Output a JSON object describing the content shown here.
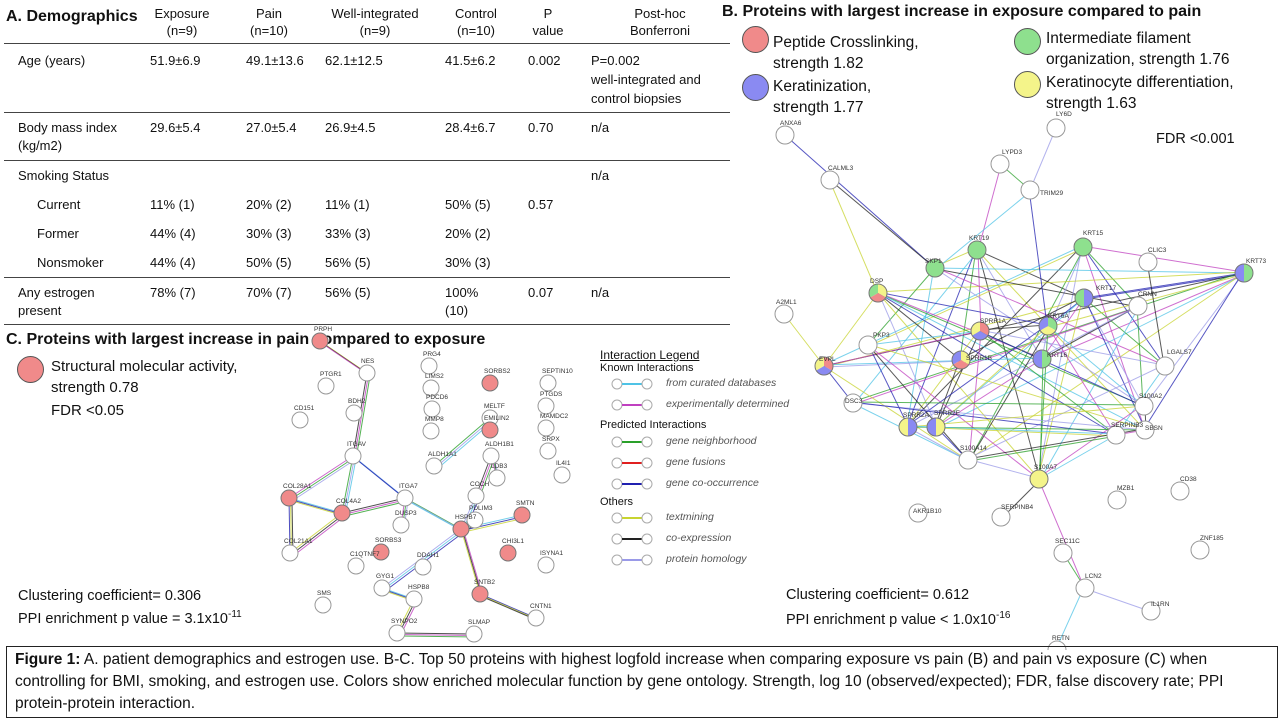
{
  "panel_a": {
    "title": "A. Demographics",
    "columns": [
      {
        "line1": "Exposure",
        "line2": "(n=9)"
      },
      {
        "line1": "Pain",
        "line2": "(n=10)"
      },
      {
        "line1": "Well-integrated",
        "line2": "(n=9)"
      },
      {
        "line1": "Control",
        "line2": "(n=10)"
      },
      {
        "line1": "P",
        "line2": "value"
      },
      {
        "line1": "Post-hoc",
        "line2": "Bonferroni"
      }
    ],
    "rows": {
      "age": {
        "label": "Age (years)",
        "exposure": "51.9±6.9",
        "pain": "49.1±13.6",
        "well": "62.1±12.5",
        "control": "41.5±6.2",
        "p": "0.002",
        "posthoc1": "P=0.002",
        "posthoc2": "well-integrated and",
        "posthoc3": "control biopsies"
      },
      "bmi": {
        "label1": "Body mass index",
        "label2": "(kg/m2)",
        "exposure": "29.6±5.4",
        "pain": "27.0±5.4",
        "well": "26.9±4.5",
        "control": "28.4±6.7",
        "p": "0.70",
        "posthoc": "n/a"
      },
      "smoking": {
        "label": "Smoking Status",
        "posthoc": "n/a"
      },
      "current": {
        "label": "Current",
        "exposure": "11% (1)",
        "pain": "20% (2)",
        "well": "11% (1)",
        "control": "50% (5)",
        "p": "0.57"
      },
      "former": {
        "label": "Former",
        "exposure": "44% (4)",
        "pain": "30% (3)",
        "well": "33% (3)",
        "control": "20% (2)"
      },
      "nonsmoker": {
        "label": "Nonsmoker",
        "exposure": "44% (4)",
        "pain": "50% (5)",
        "well": "56% (5)",
        "control": "30% (3)"
      },
      "estrogen": {
        "label1": "Any estrogen",
        "label2": "present",
        "exposure": "78% (7)",
        "pain": "70% (7)",
        "well": "56% (5)",
        "control1": "100%",
        "control2": "(10)",
        "p": "0.07",
        "posthoc": "n/a"
      }
    }
  },
  "panel_b": {
    "title": "B. Proteins with largest increase in exposure compared to pain",
    "legend": [
      {
        "line1": "Peptide Crosslinking,",
        "line2": "strength 1.82",
        "color": "#f08a8a"
      },
      {
        "line1": "Keratinization,",
        "line2": "strength 1.77",
        "color": "#8a8af2"
      },
      {
        "line1": "Intermediate filament",
        "line2": "organization, strength 1.76",
        "color": "#8ee08e"
      },
      {
        "line1": "Keratinocyte differentiation,",
        "line2": "strength 1.63",
        "color": "#f4f48a"
      }
    ],
    "fdr": "FDR <0.001",
    "clustering": "Clustering coefficient= 0.612",
    "ppi_prefix": "PPI enrichment p value < 1.0x10",
    "ppi_exp": "-16",
    "nodes": [
      "ANXA6",
      "LY6D",
      "CALML3",
      "LYPD3",
      "TRIM29",
      "KRT19",
      "KRT15",
      "CLIC3",
      "KRT73",
      "SKP1",
      "KRT17",
      "CRNN",
      "DSP",
      "A2ML1",
      "SPRR1A",
      "KRT6A",
      "EVPL",
      "SPRR1B",
      "KRT16",
      "LGALS7",
      "PKP3",
      "DSC3",
      "S100A2",
      "SPRR2A",
      "SPRR2E",
      "SBSN",
      "S100A14",
      "SERPINB3",
      "S100A7",
      "AKR1B10",
      "SERPINB4",
      "MZB1",
      "CD38",
      "SEC11C",
      "ZNF185",
      "LCN2",
      "IL1RN",
      "RETN"
    ]
  },
  "panel_c": {
    "title": "C. Proteins with largest increase in pain compared to exposure",
    "legend": {
      "line1": "Structural molecular activity,",
      "line2": "strength 0.78",
      "color": "#f08a8a"
    },
    "fdr": "FDR <0.05",
    "clustering": "Clustering coefficient= 0.306",
    "ppi_prefix": "PPI enrichment p value = 3.1x10",
    "ppi_exp": "-11",
    "nodes": [
      "PRPH",
      "NES",
      "PTGR1",
      "BDH2",
      "CD151",
      "ITGAV",
      "PRG4",
      "LIMS2",
      "PDCD6",
      "MMP8",
      "ALDH1A1",
      "SORBS2",
      "MELTF",
      "EMILIN2",
      "ALDH1B1",
      "SEPTIN10",
      "PTGDS",
      "MAMDC2",
      "SRPX",
      "IL4I1",
      "LDB3",
      "COL28A1",
      "COL4A2",
      "ITGA7",
      "COL21A1",
      "DUSP3",
      "COCH",
      "SMTN",
      "PDLIM3",
      "HSPB7",
      "SORBS3",
      "C1QTNF7",
      "DDAH1",
      "GYG1",
      "HSPB8",
      "CHI3L1",
      "ISYNA1",
      "SNTB2",
      "CNTN1",
      "SMS",
      "SYNPO2",
      "SLMAP"
    ]
  },
  "interaction_legend": {
    "title": "Interaction Legend",
    "known": "Known Interactions",
    "predicted": "Predicted Interactions",
    "others": "Others",
    "items": [
      {
        "label": "from curated databases",
        "color": "#4fc3e6"
      },
      {
        "label": "experimentally determined",
        "color": "#c040c0"
      },
      {
        "label": "gene neighborhood",
        "color": "#2aa02a"
      },
      {
        "label": "gene fusions",
        "color": "#e02020"
      },
      {
        "label": "gene co-occurrence",
        "color": "#2020b0"
      },
      {
        "label": "textmining",
        "color": "#c8d430"
      },
      {
        "label": "co-expression",
        "color": "#222222"
      },
      {
        "label": "protein homology",
        "color": "#9a9ae8"
      }
    ]
  },
  "caption": {
    "label": "Figure 1:",
    "text": " A.  patient demographics and estrogen use.  B-C.  Top 50 proteins with highest logfold increase when comparing exposure vs pain (B) and pain vs exposure (C) when controlling for BMI, smoking, and estrogen use. Colors show enriched molecular function by gene ontology. Strength, log 10 (observed/expected);  FDR, false discovery rate; PPI protein-protein  interaction."
  }
}
